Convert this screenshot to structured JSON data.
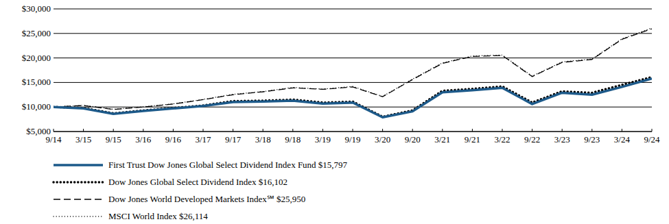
{
  "chart_data": {
    "type": "line",
    "categories": [
      "9/14",
      "3/15",
      "9/15",
      "3/16",
      "9/16",
      "3/17",
      "9/17",
      "3/18",
      "9/18",
      "3/19",
      "9/19",
      "3/20",
      "9/20",
      "3/21",
      "9/21",
      "3/22",
      "9/22",
      "3/23",
      "9/23",
      "3/24",
      "9/24"
    ],
    "series": [
      {
        "name": "First Trust Dow Jones Global Select Dividend Index Fund $15,797",
        "color": "#1d5a8a",
        "line_style": "solid",
        "values": [
          10000,
          9700,
          8600,
          9200,
          9700,
          10200,
          11000,
          11100,
          11300,
          10700,
          10900,
          7900,
          9100,
          13000,
          13400,
          13900,
          10600,
          12900,
          12500,
          14100,
          15797
        ]
      },
      {
        "name": "Dow Jones Global Select Dividend Index $16,102",
        "color": "#000000",
        "line_style": "dotted",
        "values": [
          10000,
          9800,
          8700,
          9300,
          9800,
          10300,
          11200,
          11300,
          11500,
          10900,
          11100,
          8000,
          9300,
          13300,
          13700,
          14200,
          10900,
          13200,
          12900,
          14500,
          16102
        ]
      },
      {
        "name": "Dow Jones World Developed Markets Index℠ $25,950",
        "color": "#000000",
        "line_style": "dashed",
        "values": [
          10000,
          10300,
          9500,
          10000,
          10600,
          11500,
          12500,
          13100,
          13900,
          13600,
          14100,
          12100,
          15600,
          18900,
          20300,
          20500,
          16200,
          19100,
          19700,
          23800,
          25950
        ]
      },
      {
        "name": "MSCI World Index $26,114",
        "color": "#000000",
        "line_style": "dotted",
        "values": [
          10000,
          10350,
          9550,
          10050,
          10650,
          11550,
          12600,
          13150,
          14000,
          13650,
          14200,
          12150,
          15700,
          19000,
          20400,
          20600,
          16300,
          19200,
          19800,
          23900,
          26114
        ]
      }
    ],
    "ylim": [
      5000,
      30000
    ],
    "yticks": [
      {
        "value": 5000,
        "label": "$5,000"
      },
      {
        "value": 10000,
        "label": "$10,000"
      },
      {
        "value": 15000,
        "label": "$15,000"
      },
      {
        "value": 20000,
        "label": "$20,000"
      },
      {
        "value": 25000,
        "label": "$25,000"
      },
      {
        "value": 30000,
        "label": "$30,000"
      }
    ],
    "grid": true,
    "legend": "bottom"
  }
}
